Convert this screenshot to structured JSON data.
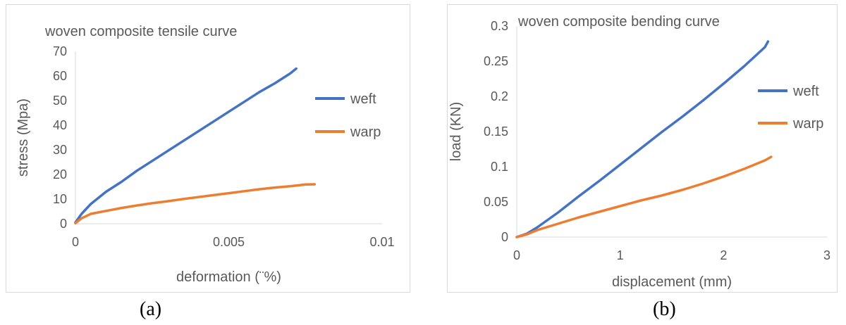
{
  "chart_data": [
    {
      "type": "line",
      "title": "woven composite tensile curve",
      "xlabel": "deformation (¨%)",
      "ylabel": "stress (Mpa)",
      "xlim": [
        0,
        0.01
      ],
      "ylim": [
        0,
        70
      ],
      "x_ticks": [
        "0",
        "0.005",
        "0.01"
      ],
      "y_ticks": [
        "0",
        "10",
        "20",
        "30",
        "40",
        "50",
        "60",
        "70"
      ],
      "grid": false,
      "legend_position": "right",
      "series": [
        {
          "name": "weft",
          "color": "#4472C4",
          "x": [
            0,
            0.0002,
            0.0005,
            0.001,
            0.0015,
            0.002,
            0.0025,
            0.003,
            0.0035,
            0.004,
            0.0045,
            0.005,
            0.0055,
            0.006,
            0.0065,
            0.007,
            0.0072
          ],
          "y": [
            0.5,
            4,
            8,
            13,
            17,
            21.5,
            25.5,
            29.5,
            33.5,
            37.5,
            41.5,
            45.5,
            49.5,
            53.5,
            57,
            61,
            63
          ]
        },
        {
          "name": "warp",
          "color": "#ED7D31",
          "x": [
            0,
            0.0002,
            0.0005,
            0.001,
            0.0015,
            0.002,
            0.0025,
            0.003,
            0.0035,
            0.004,
            0.0045,
            0.005,
            0.0055,
            0.006,
            0.0065,
            0.007,
            0.0075,
            0.0078
          ],
          "y": [
            0.2,
            2.2,
            4,
            5.2,
            6.4,
            7.4,
            8.3,
            9.1,
            10,
            10.8,
            11.6,
            12.4,
            13.2,
            14,
            14.7,
            15.2,
            15.9,
            16
          ]
        }
      ]
    },
    {
      "type": "line",
      "title": "woven composite bending curve",
      "xlabel": "displacement (mm)",
      "ylabel": "load (KN)",
      "xlim": [
        0,
        3
      ],
      "ylim": [
        0,
        0.3
      ],
      "x_ticks": [
        "0",
        "1",
        "2",
        "3"
      ],
      "y_ticks": [
        "0",
        "0.05",
        "0.1",
        "0.15",
        "0.2",
        "0.25",
        "0.3"
      ],
      "grid": false,
      "legend_position": "right",
      "series": [
        {
          "name": "weft",
          "color": "#4472C4",
          "x": [
            0,
            0.1,
            0.2,
            0.4,
            0.6,
            0.8,
            1.0,
            1.2,
            1.4,
            1.6,
            1.8,
            2.0,
            2.2,
            2.4,
            2.43
          ],
          "y": [
            0,
            0.005,
            0.014,
            0.035,
            0.058,
            0.08,
            0.103,
            0.126,
            0.149,
            0.171,
            0.194,
            0.218,
            0.243,
            0.27,
            0.278
          ]
        },
        {
          "name": "warp",
          "color": "#ED7D31",
          "x": [
            0,
            0.1,
            0.2,
            0.4,
            0.6,
            0.8,
            1.0,
            1.2,
            1.4,
            1.6,
            1.8,
            2.0,
            2.2,
            2.4,
            2.46
          ],
          "y": [
            0,
            0.004,
            0.01,
            0.019,
            0.028,
            0.036,
            0.044,
            0.052,
            0.059,
            0.067,
            0.076,
            0.086,
            0.097,
            0.109,
            0.114
          ]
        }
      ]
    }
  ],
  "figure_labels": [
    "(a)",
    "(b)"
  ]
}
